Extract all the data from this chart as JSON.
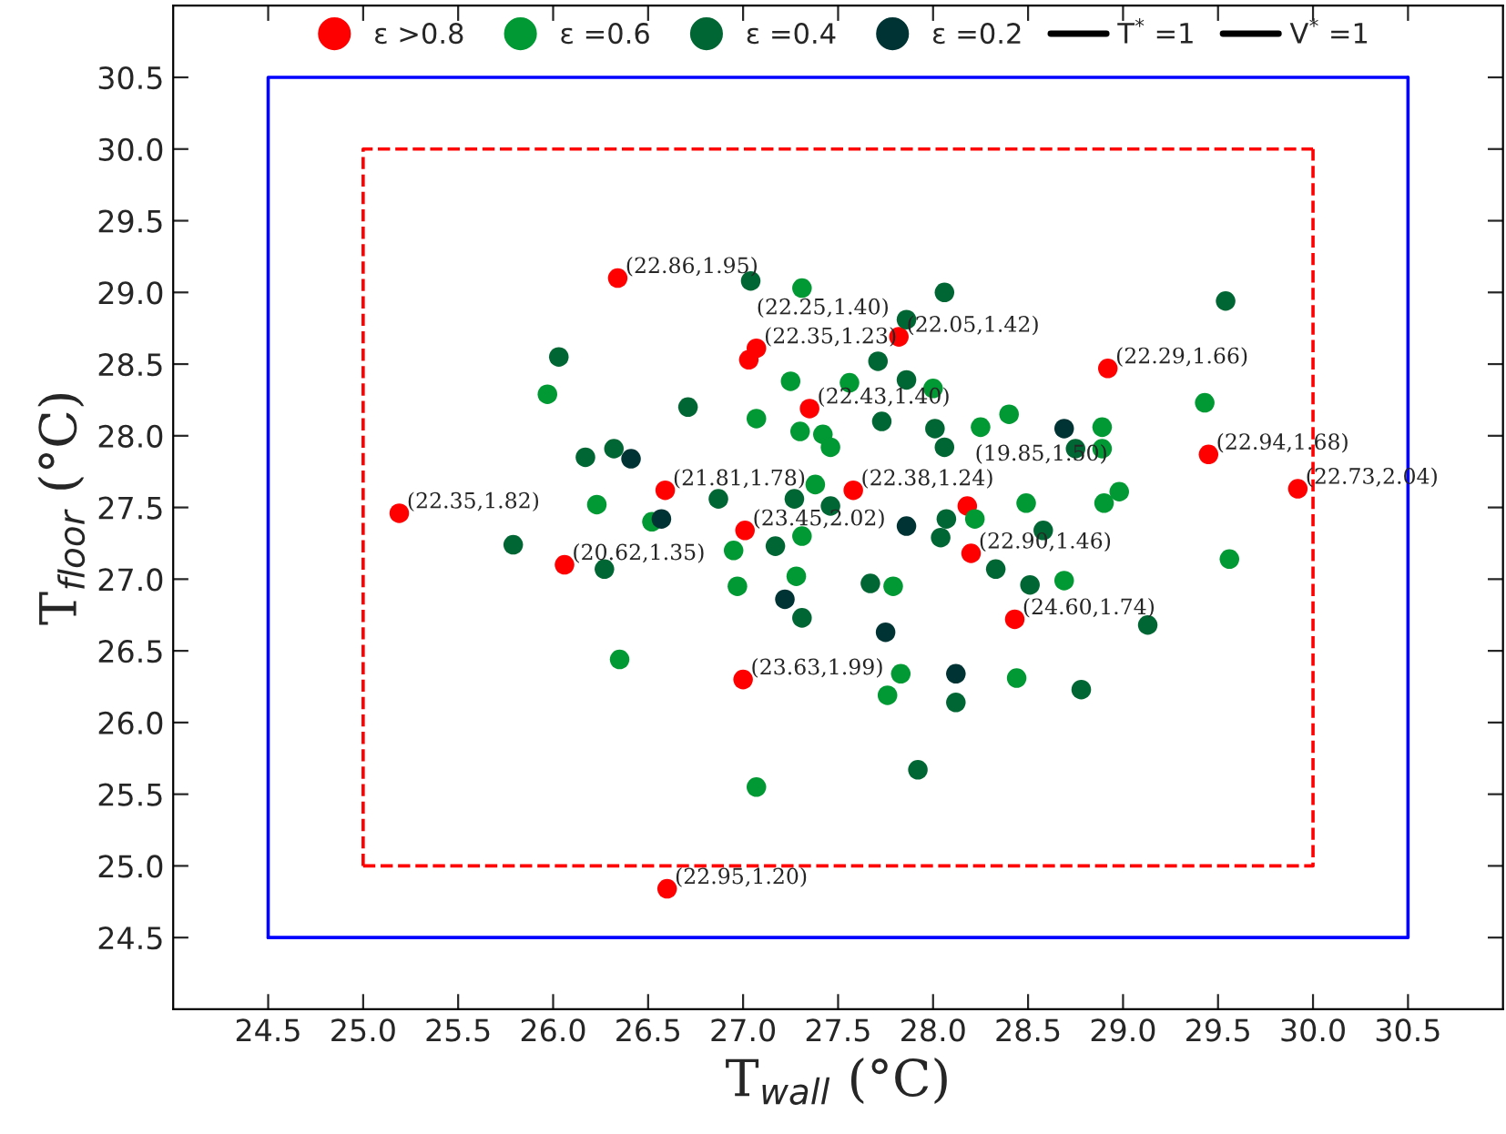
{
  "chart_data": {
    "type": "scatter",
    "xlabel": "T$_{wall}$ (°C)",
    "ylabel": "T$_{floor}$ (°C)",
    "xlim": [
      24.0,
      31.0
    ],
    "ylim": [
      24.0,
      31.0
    ],
    "xticks": [
      24.5,
      {
        "value": 25,
        "label": "25.0"
      },
      25.5,
      {
        "value": 26,
        "label": "26.0"
      },
      26.5,
      {
        "value": 27,
        "label": "27.0"
      },
      27.5,
      {
        "value": 28,
        "label": "28.0"
      },
      28.5,
      {
        "value": 29,
        "label": "29.0"
      },
      29.5,
      {
        "value": 30,
        "label": "30.0"
      },
      30.5
    ],
    "yticks": [
      24.5,
      {
        "value": 25,
        "label": "25.0"
      },
      25.5,
      {
        "value": 26,
        "label": "26.0"
      },
      26.5,
      {
        "value": 27,
        "label": "27.0"
      },
      27.5,
      {
        "value": 28,
        "label": "28.0"
      },
      28.5,
      {
        "value": 29,
        "label": "29.0"
      },
      29.5,
      {
        "value": 30,
        "label": "30.0"
      },
      30.5
    ],
    "grid": false,
    "legend": "top",
    "marker": "circle",
    "series": [
      {
        "name": "ε >0.8",
        "color": "#ff0000",
        "x": [
          26.34,
          27.07,
          27.03,
          27.82,
          27.35,
          28.92,
          29.45,
          29.92,
          25.19,
          26.59,
          27.58,
          28.18,
          27.01,
          26.06,
          28.2,
          28.43,
          27.0,
          26.6
        ],
        "values": [
          29.1,
          28.61,
          28.53,
          28.69,
          28.19,
          28.47,
          27.87,
          27.63,
          27.46,
          27.62,
          27.62,
          27.51,
          27.34,
          27.1,
          27.18,
          26.72,
          26.3,
          24.84
        ]
      },
      {
        "name": "ε =0.6",
        "color": "#009933",
        "x": [
          25.97,
          27.31,
          27.25,
          27.56,
          28.0,
          28.25,
          28.4,
          28.89,
          28.89,
          29.43,
          27.07,
          27.3,
          27.42,
          27.46,
          26.23,
          26.52,
          27.38,
          26.95,
          27.31,
          26.97,
          27.28,
          27.79,
          26.35,
          27.83,
          27.76,
          27.07,
          28.22,
          28.49,
          28.9,
          28.98,
          28.69,
          29.56,
          28.44
        ],
        "values": [
          28.29,
          29.03,
          28.38,
          28.37,
          28.33,
          28.06,
          28.15,
          28.06,
          27.91,
          28.23,
          28.12,
          28.03,
          28.01,
          27.92,
          27.52,
          27.4,
          27.66,
          27.2,
          27.3,
          26.95,
          27.02,
          26.95,
          26.44,
          26.34,
          26.19,
          25.55,
          27.42,
          27.53,
          27.53,
          27.61,
          26.99,
          27.14,
          26.31
        ]
      },
      {
        "name": "ε =0.4",
        "color": "#006633",
        "x": [
          26.03,
          27.04,
          28.06,
          27.86,
          27.71,
          27.86,
          28.75,
          29.54,
          27.73,
          28.01,
          28.06,
          26.71,
          26.17,
          26.32,
          26.87,
          27.27,
          27.46,
          25.79,
          26.27,
          27.17,
          27.31,
          27.67,
          28.07,
          28.04,
          28.58,
          28.33,
          28.51,
          29.13,
          28.12,
          28.78,
          27.92
        ],
        "values": [
          28.55,
          29.08,
          29.0,
          28.81,
          28.52,
          28.39,
          27.91,
          28.94,
          28.1,
          28.05,
          27.92,
          28.2,
          27.85,
          27.91,
          27.56,
          27.56,
          27.51,
          27.24,
          27.07,
          27.23,
          26.73,
          26.97,
          27.42,
          27.29,
          27.34,
          27.07,
          26.96,
          26.68,
          26.14,
          26.23,
          25.67
        ]
      },
      {
        "name": "ε =0.2",
        "color": "#003333",
        "x": [
          28.69,
          26.41,
          26.57,
          27.22,
          27.75,
          27.86,
          28.12
        ],
        "values": [
          28.05,
          27.84,
          27.42,
          26.86,
          26.63,
          27.37,
          26.34
        ]
      },
      {
        "type": "line",
        "color": "#0000ff",
        "line_style": "solid",
        "marker": "none",
        "x": [
          24.5,
          24.5,
          30.5
        ],
        "values": [
          24.5,
          30.5,
          30.5
        ]
      },
      {
        "type": "line",
        "color": "#0000ff",
        "line_style": "solid",
        "marker": "none",
        "x": [
          24.5,
          30.5,
          30.5
        ],
        "values": [
          24.5,
          24.5,
          30.5
        ]
      },
      {
        "type": "line",
        "color": "#ff0000",
        "line_style": "dashed",
        "marker": "none",
        "x": [
          25,
          25,
          30
        ],
        "values": [
          25,
          30,
          30
        ]
      },
      {
        "type": "line",
        "color": "#ff0000",
        "line_style": "dashed",
        "marker": "none",
        "x": [
          25,
          30,
          30
        ],
        "values": [
          25,
          25,
          30
        ]
      }
    ],
    "annotations": [
      "T$^{*}$ =1",
      "V$^{*}$ =1",
      {
        "text": "(22.86,1.95)",
        "x": 26.34,
        "y": 29.1
      },
      {
        "text": "(22.35,1.23)",
        "x": 27.07,
        "y": 28.61
      },
      {
        "text": "(22.25,1.40)",
        "x": 27.03,
        "y": 28.53
      },
      {
        "text": "(22.05,1.42)",
        "x": 27.82,
        "y": 28.69
      },
      {
        "text": "(22.43,1.40)",
        "x": 27.35,
        "y": 28.19
      },
      {
        "text": "(22.29,1.66)",
        "x": 28.92,
        "y": 28.47
      },
      {
        "text": "(22.94,1.68)",
        "x": 29.45,
        "y": 27.87
      },
      {
        "text": "(22.73,2.04)",
        "x": 29.92,
        "y": 27.63
      },
      {
        "text": "(22.35,1.82)",
        "x": 25.19,
        "y": 27.46
      },
      {
        "text": "(21.81,1.78)",
        "x": 26.59,
        "y": 27.62
      },
      {
        "text": "(22.38,1.24)",
        "x": 27.58,
        "y": 27.62
      },
      {
        "text": "(19.85,1.50)",
        "x": 28.18,
        "y": 27.51
      },
      {
        "text": "(23.45,2.02)",
        "x": 27.01,
        "y": 27.34
      },
      {
        "text": "(20.62,1.35)",
        "x": 26.06,
        "y": 27.1
      },
      {
        "text": "(22.90,1.46)",
        "x": 28.2,
        "y": 27.18
      },
      {
        "text": "(24.60,1.74)",
        "x": 28.43,
        "y": 26.72
      },
      {
        "text": "(23.63,1.99)",
        "x": 27.0,
        "y": 26.3
      },
      {
        "text": "(22.95,1.20)",
        "x": 26.6,
        "y": 24.84
      }
    ]
  }
}
